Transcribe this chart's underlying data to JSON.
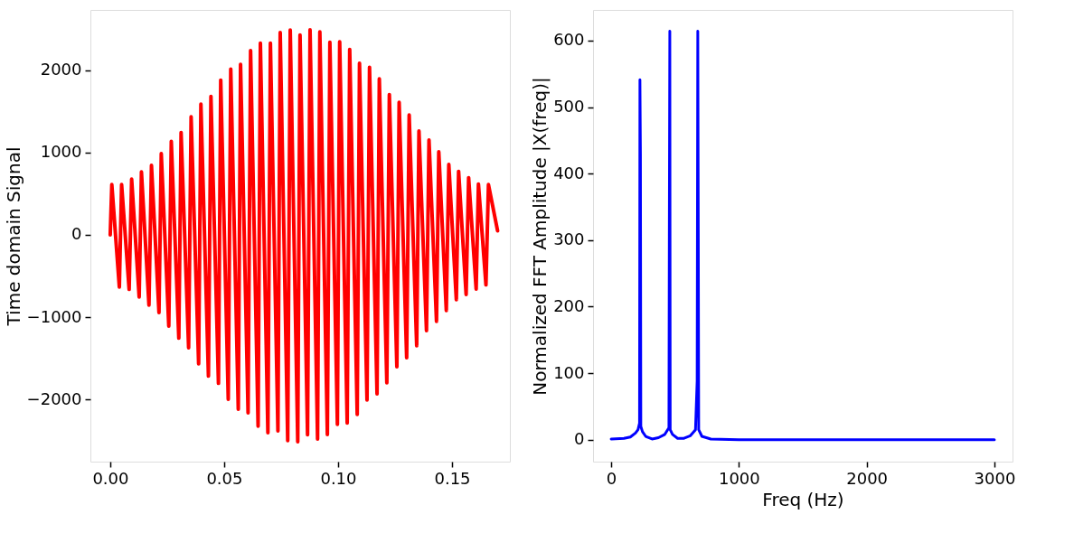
{
  "chart_data": [
    {
      "type": "line",
      "ylabel": "Time domain Signal",
      "grid": false,
      "line_style": "solid",
      "marker": "none",
      "xlim": [
        -0.0087,
        0.1754
      ],
      "ylim": [
        -2758,
        2736
      ],
      "xticks": [
        {
          "value": 0,
          "label": "0.00"
        },
        {
          "value": 0.05,
          "label": "0.05"
        },
        {
          "value": 0.1,
          "label": "0.10"
        },
        {
          "value": 0.15,
          "label": "0.15"
        }
      ],
      "yticks": [
        {
          "value": -2000,
          "label": "−2000"
        },
        {
          "value": -1000,
          "label": "−1000"
        },
        0,
        1000,
        2000
      ],
      "series": [
        {
          "color": "#ff0000",
          "x": [
            0,
            0.0007,
            0.004,
            0.005,
            0.0083,
            0.0094,
            0.0127,
            0.0137,
            0.017,
            0.0181,
            0.0214,
            0.0224,
            0.0257,
            0.0268,
            0.0301,
            0.0311,
            0.0344,
            0.0355,
            0.0388,
            0.0398,
            0.0431,
            0.0442,
            0.0475,
            0.0485,
            0.0518,
            0.0529,
            0.0562,
            0.0572,
            0.0605,
            0.0616,
            0.0649,
            0.0659,
            0.0692,
            0.0703,
            0.0736,
            0.0746,
            0.0779,
            0.079,
            0.0823,
            0.0833,
            0.0866,
            0.0877,
            0.091,
            0.092,
            0.0953,
            0.0964,
            0.0997,
            0.1007,
            0.104,
            0.1051,
            0.1084,
            0.1094,
            0.1127,
            0.1138,
            0.1171,
            0.1181,
            0.1214,
            0.1225,
            0.1258,
            0.1268,
            0.1301,
            0.1312,
            0.1345,
            0.1355,
            0.1388,
            0.1399,
            0.1432,
            0.1442,
            0.1475,
            0.1486,
            0.1519,
            0.1529,
            0.1562,
            0.1573,
            0.1606,
            0.1616,
            0.1649,
            0.166,
            0.17
          ],
          "values": [
            0,
            612,
            -634,
            612,
            -663,
            678,
            -755,
            766,
            -853,
            846,
            -945,
            989,
            -1110,
            1136,
            -1256,
            1245,
            -1374,
            1436,
            -1568,
            1590,
            -1718,
            1685,
            -1806,
            1883,
            -2000,
            2015,
            -2121,
            2073,
            -2165,
            2242,
            -2326,
            2333,
            -2407,
            2333,
            -2385,
            2462,
            -2502,
            2491,
            -2516,
            2432,
            -2432,
            2495,
            -2484,
            2469,
            -2429,
            2344,
            -2304,
            2348,
            -2289,
            2256,
            -2183,
            2088,
            -2007,
            2037,
            -1934,
            1897,
            -1799,
            1707,
            -1604,
            1612,
            -1495,
            1458,
            -1348,
            1264,
            -1165,
            1154,
            -1051,
            1011,
            -919,
            857,
            -788,
            773,
            -725,
            696,
            -659,
            619,
            -608,
            612,
            50
          ]
        }
      ]
    },
    {
      "type": "line",
      "xlabel": "Freq (Hz)",
      "ylabel": "Normalized FFT Amplitude |X(freq)|",
      "grid": false,
      "line_style": "solid",
      "marker": "none",
      "xlim": [
        -142,
        3142
      ],
      "ylim": [
        -33,
        646
      ],
      "xticks": [
        0,
        1000,
        2000,
        3000
      ],
      "yticks": [
        0,
        100,
        200,
        300,
        400,
        500,
        600
      ],
      "series": [
        {
          "color": "#0000ff",
          "x": [
            0,
            100,
            150,
            190,
            210,
            222,
            225,
            229,
            232,
            245,
            270,
            320,
            370,
            420,
            452,
            455,
            459,
            462,
            480,
            520,
            570,
            620,
            660,
            673,
            678,
            682,
            685,
            710,
            780,
            1000,
            2000,
            3000
          ],
          "values": [
            1,
            2,
            4,
            10,
            15,
            25,
            541,
            429,
            20,
            12,
            5,
            1,
            3,
            8,
            18,
            306,
            614,
            15,
            8,
            2,
            2,
            6,
            15,
            88,
            614,
            306,
            15,
            5,
            1,
            0,
            0,
            0
          ]
        }
      ]
    }
  ]
}
